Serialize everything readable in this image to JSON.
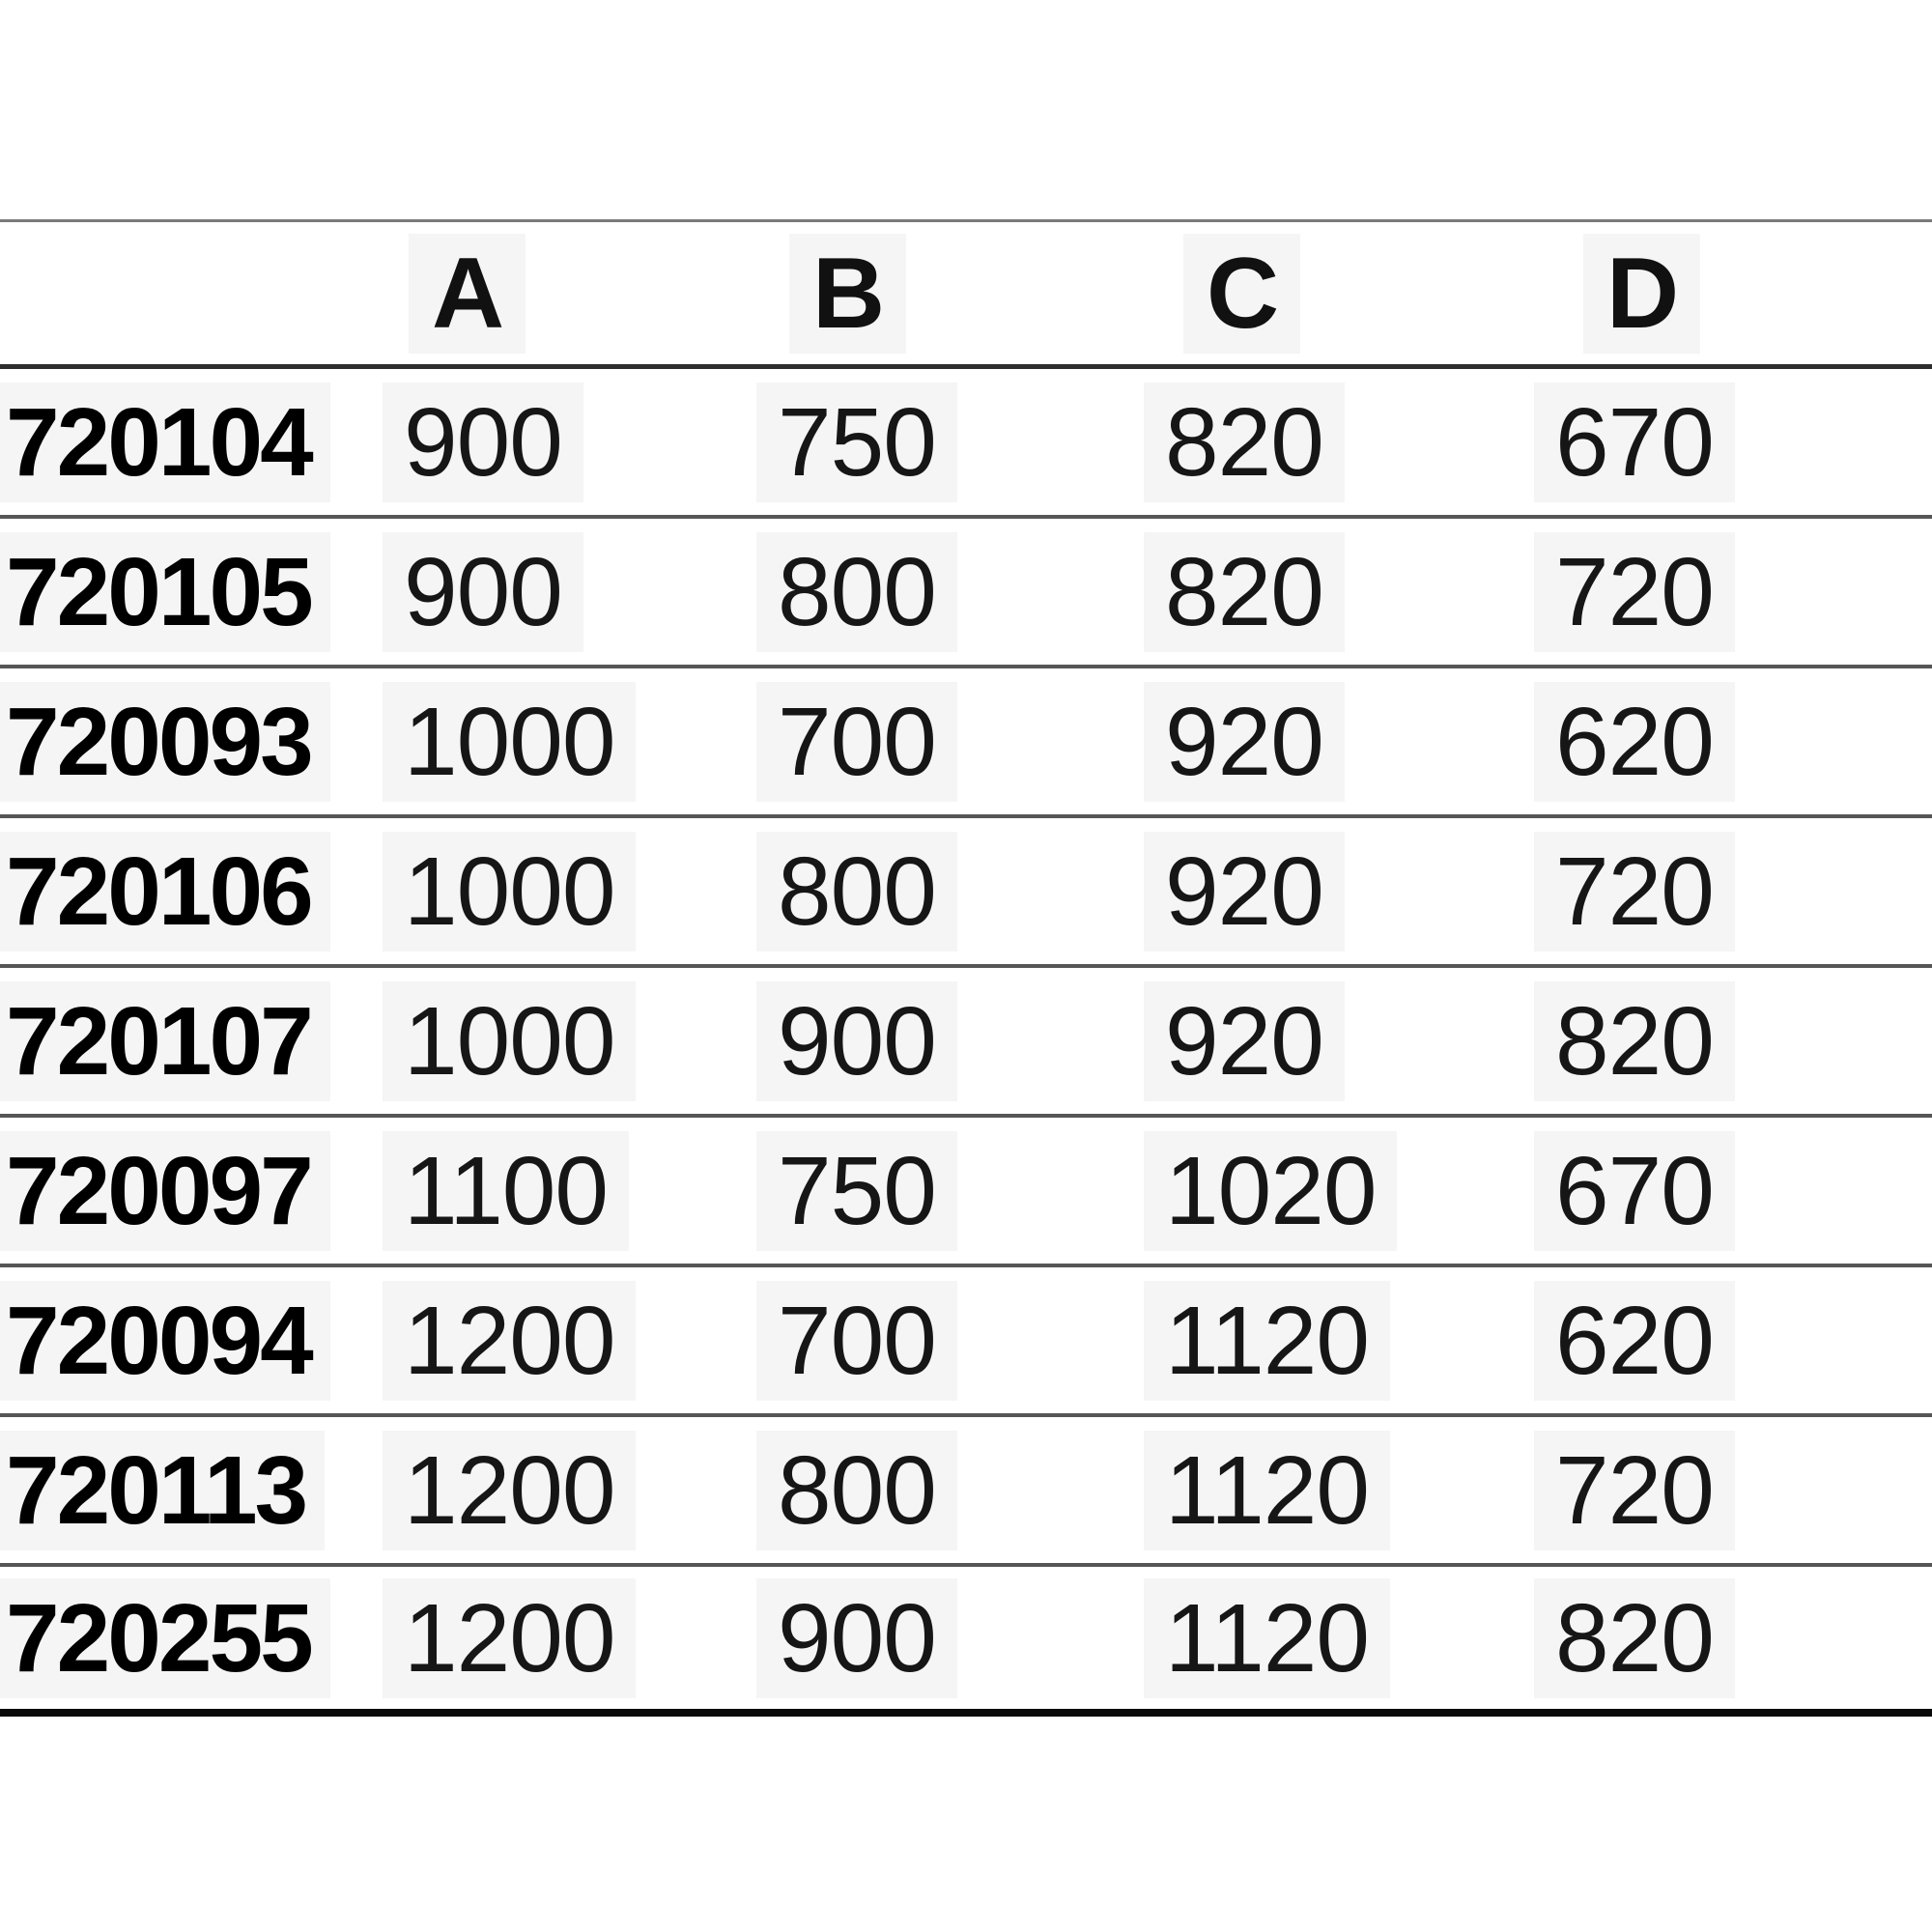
{
  "table": {
    "headers": [
      "A",
      "B",
      "C",
      "D"
    ],
    "rows": [
      {
        "code": "720104",
        "values": [
          "900",
          "750",
          "820",
          "670"
        ]
      },
      {
        "code": "720105",
        "values": [
          "900",
          "800",
          "820",
          "720"
        ]
      },
      {
        "code": "720093",
        "values": [
          "1000",
          "700",
          "920",
          "620"
        ]
      },
      {
        "code": "720106",
        "values": [
          "1000",
          "800",
          "920",
          "720"
        ]
      },
      {
        "code": "720107",
        "values": [
          "1000",
          "900",
          "920",
          "820"
        ]
      },
      {
        "code": "720097",
        "values": [
          "1100",
          "750",
          "1020",
          "670"
        ]
      },
      {
        "code": "720094",
        "values": [
          "1200",
          "700",
          "1120",
          "620"
        ]
      },
      {
        "code": "720113",
        "values": [
          "1200",
          "800",
          "1120",
          "720"
        ]
      },
      {
        "code": "720255",
        "values": [
          "1200",
          "900",
          "1120",
          "820"
        ]
      }
    ],
    "colors": {
      "top_line": "#7a7a7a",
      "header_line": "#2e2e2e",
      "row_line": "#565656",
      "bottom_line": "#0a0a0a",
      "cell_tint": "#f5f5f5",
      "code_text": "#000000",
      "value_text": "#161616"
    }
  }
}
